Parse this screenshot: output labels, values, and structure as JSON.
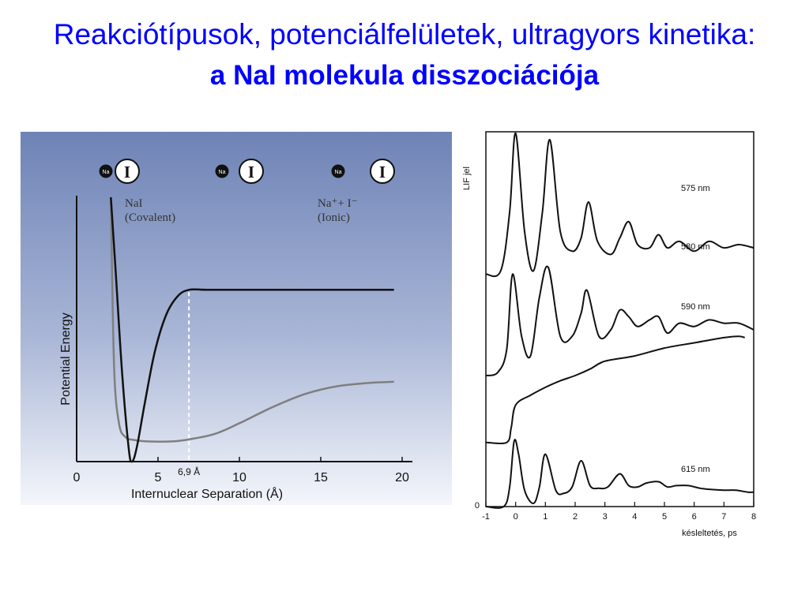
{
  "slide": {
    "title_line1": "Reakciótípusok, potenciálfelületek, ultragyors kinetika:",
    "title_line2": "a NaI molekula disszociációja"
  },
  "colors": {
    "title": "#0000ff",
    "panel_top": "#6e83b6",
    "panel_bottom": "#f4f6fb",
    "covalent": "#7f7f7f",
    "ionic": "#111111"
  },
  "chart_data": [
    {
      "type": "line",
      "xlabel": "Internuclear Separation (Å)",
      "ylabel": "Potential Energy",
      "xlim": [
        0,
        20
      ],
      "xticks": [
        0,
        5,
        10,
        15,
        20
      ],
      "annotation": {
        "x": 6.9,
        "label": "6,9 Å"
      },
      "atoms": {
        "na": "Na",
        "i": "I"
      },
      "curve_labels": [
        {
          "line1": "NaI",
          "line2": "(Covalent)"
        },
        {
          "line1": "Na⁺+ I⁻",
          "line2": "(Ionic)"
        }
      ],
      "series": [
        {
          "x": [
            2.1,
            2.3,
            2.6,
            3.0,
            3.5,
            4.5,
            6.0,
            7.0,
            8.5,
            10.0,
            12.0,
            14.0,
            16.0,
            18.0,
            19.5
          ],
          "y": [
            10.0,
            3.6,
            1.45,
            0.93,
            0.82,
            0.76,
            0.77,
            0.85,
            1.05,
            1.45,
            2.05,
            2.55,
            2.85,
            2.98,
            3.02
          ]
        },
        {
          "x": [
            2.1,
            2.4,
            2.8,
            3.2,
            3.4,
            3.7,
            4.2,
            4.8,
            5.5,
            6.2,
            6.9,
            8.0,
            10.0,
            15.0,
            19.5
          ],
          "y": [
            10.0,
            7.2,
            3.3,
            0.5,
            0.0,
            0.55,
            2.25,
            4.15,
            5.55,
            6.25,
            6.5,
            6.5,
            6.5,
            6.5,
            6.5
          ]
        }
      ]
    },
    {
      "type": "line",
      "xlabel": "késleltetés, ps",
      "ylabel": "LIF jel",
      "xlim": [
        -1,
        8
      ],
      "xticks": [
        -1,
        0,
        1,
        2,
        3,
        4,
        5,
        6,
        7,
        8
      ],
      "yticks": [
        0
      ],
      "series": [
        {
          "name": "575 nm",
          "x": [
            -1,
            -0.5,
            -0.2,
            0.0,
            0.3,
            0.6,
            0.9,
            1.15,
            1.5,
            1.9,
            2.2,
            2.45,
            2.75,
            3.2,
            3.5,
            3.8,
            4.1,
            4.5,
            4.8,
            5.1,
            5.5,
            6.0,
            6.5,
            7.0,
            7.5,
            8.0
          ],
          "y": [
            3.55,
            3.6,
            4.5,
            5.7,
            4.2,
            3.6,
            4.5,
            5.6,
            4.2,
            3.9,
            4.1,
            4.65,
            4.05,
            3.85,
            4.1,
            4.35,
            4.0,
            3.95,
            4.15,
            3.95,
            4.05,
            3.9,
            4.05,
            3.95,
            4.0,
            3.95
          ]
        },
        {
          "name": "580 nm",
          "x": [
            -1,
            -0.6,
            -0.3,
            -0.1,
            0.2,
            0.5,
            0.8,
            1.1,
            1.5,
            1.9,
            2.2,
            2.4,
            2.8,
            3.2,
            3.5,
            3.8,
            4.1,
            4.5,
            4.8,
            5.1,
            5.5,
            6.0,
            6.5,
            7.0,
            7.5,
            8.0
          ],
          "y": [
            2.0,
            2.05,
            2.4,
            3.55,
            2.6,
            2.3,
            3.2,
            3.65,
            2.6,
            2.6,
            2.95,
            3.3,
            2.6,
            2.7,
            3.0,
            2.9,
            2.75,
            2.85,
            2.9,
            2.65,
            2.8,
            2.75,
            2.85,
            2.8,
            2.8,
            2.7
          ]
        },
        {
          "name": "590 nm",
          "x": [
            -1,
            -0.3,
            -0.15,
            0.0,
            0.5,
            1.0,
            1.5,
            2.0,
            2.5,
            3.0,
            4.0,
            5.0,
            6.0,
            7.0,
            7.5,
            7.7
          ],
          "y": [
            0.98,
            0.98,
            1.2,
            1.55,
            1.7,
            1.82,
            1.92,
            2.0,
            2.1,
            2.22,
            2.3,
            2.42,
            2.5,
            2.58,
            2.6,
            2.58
          ]
        },
        {
          "name": "615 nm",
          "x": [
            -1,
            -0.4,
            -0.2,
            -0.05,
            0.1,
            0.3,
            0.6,
            0.8,
            1.0,
            1.35,
            1.6,
            1.9,
            2.2,
            2.5,
            2.8,
            3.1,
            3.5,
            3.8,
            4.1,
            4.4,
            4.8,
            5.1,
            5.4,
            5.8,
            6.2,
            6.6,
            7.0,
            7.4,
            7.8,
            8.0
          ],
          "y": [
            0.0,
            0.0,
            0.3,
            1.0,
            0.8,
            0.25,
            0.05,
            0.3,
            0.8,
            0.25,
            0.2,
            0.3,
            0.7,
            0.32,
            0.28,
            0.3,
            0.5,
            0.32,
            0.3,
            0.36,
            0.38,
            0.3,
            0.32,
            0.32,
            0.28,
            0.26,
            0.25,
            0.25,
            0.22,
            0.22
          ]
        }
      ]
    }
  ]
}
